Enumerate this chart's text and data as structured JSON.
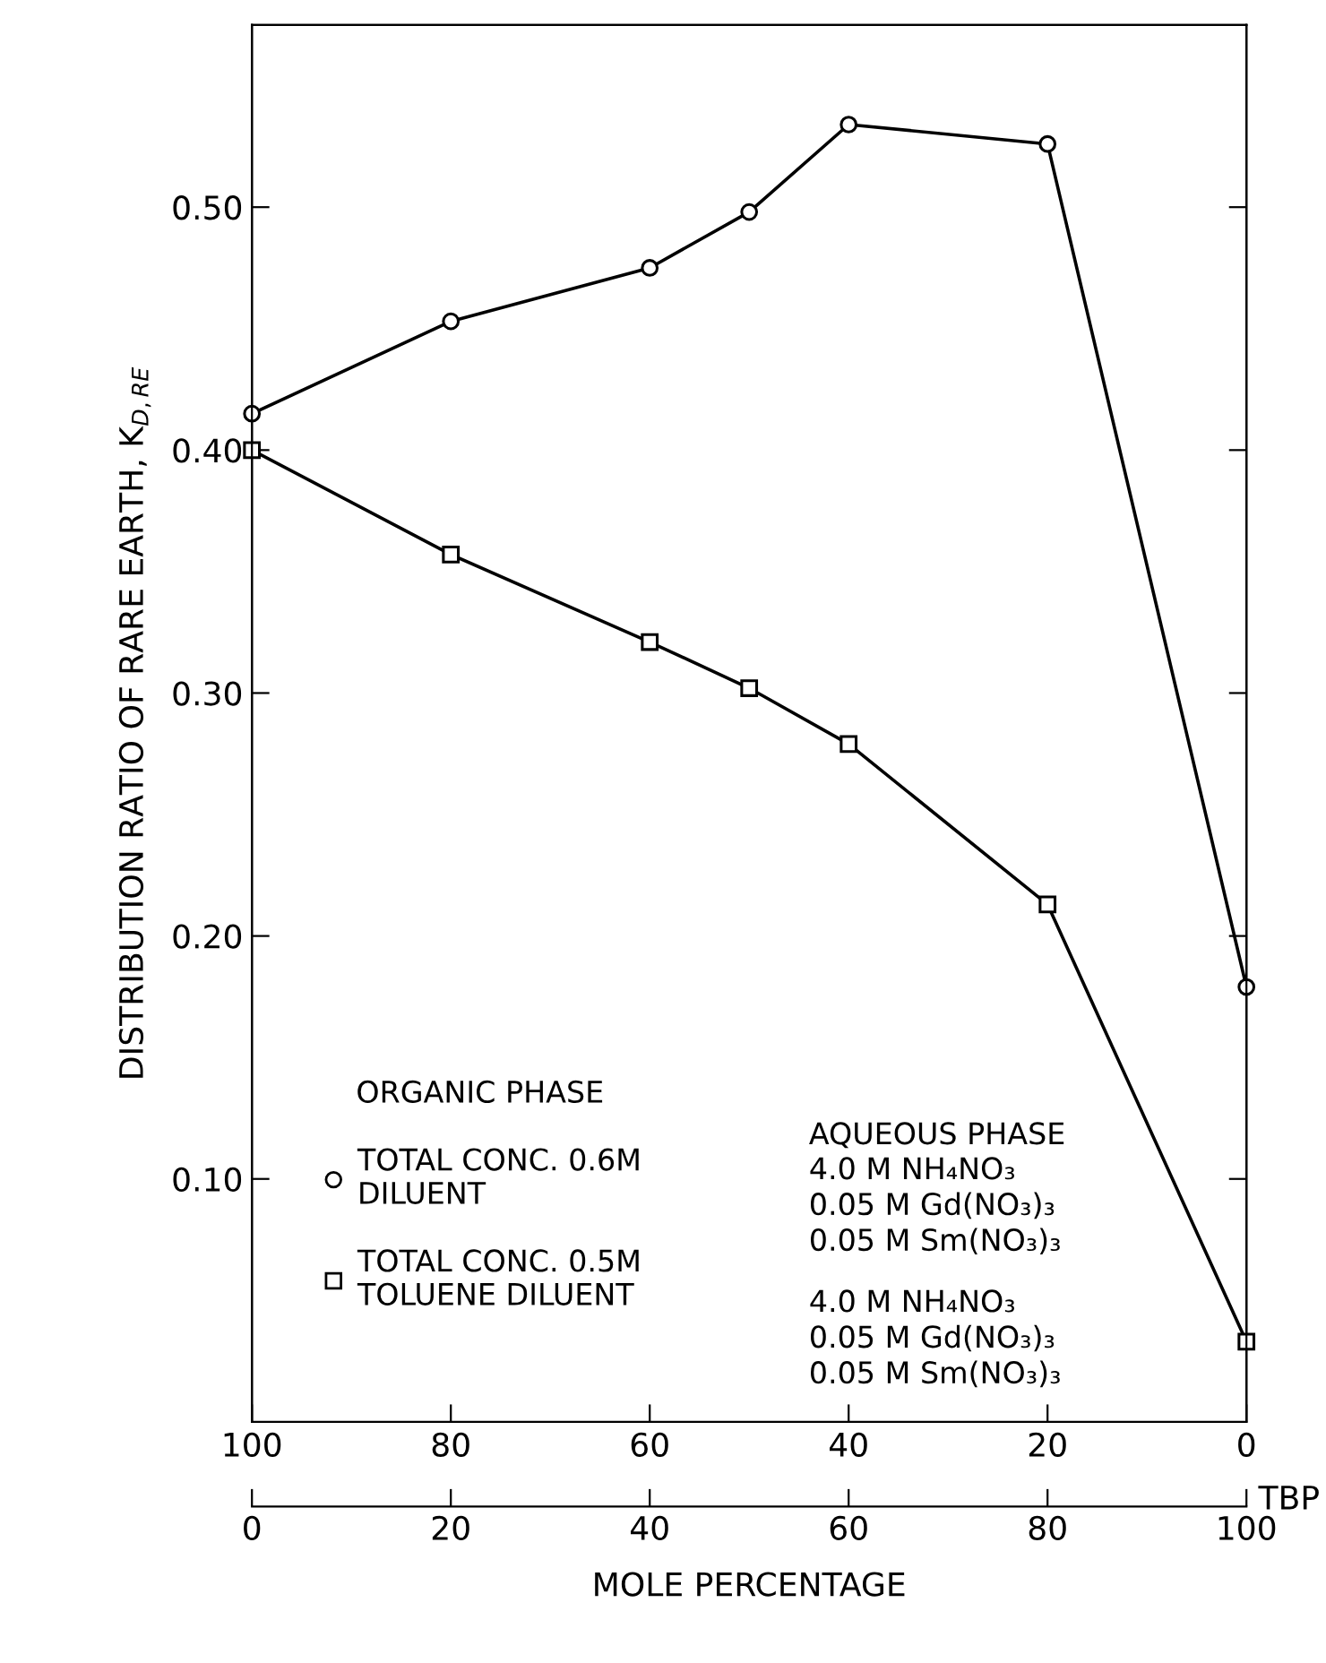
{
  "chart_data": {
    "type": "line",
    "xlabel": "MOLE PERCENTAGE",
    "x2label": "TBP",
    "ylabel": "DISTRIBUTION RATIO OF RARE EARTH, K$_{D,RE}$",
    "legend_title": "ORGANIC PHASE",
    "legend": "bottom left",
    "x": [
      0,
      20,
      40,
      50,
      60,
      80,
      100
    ],
    "series": [
      {
        "name": "TOTAL CONC. 0.6M\nDILUENT",
        "color": "#000000",
        "marker": "circle",
        "values": [
          0.415,
          0.453,
          0.475,
          0.498,
          0.534,
          0.526,
          0.179
        ]
      },
      {
        "name": "TOTAL CONC. 0.5M\nTOLUENE DILUENT",
        "color": "#000000",
        "marker": "square",
        "values": [
          0.4,
          0.357,
          0.321,
          0.302,
          0.279,
          0.213,
          0.033
        ]
      }
    ],
    "xlim": [
      0,
      100
    ],
    "xticks": [
      0,
      20,
      40,
      60,
      80,
      100
    ],
    "x2lim": [
      100,
      0
    ],
    "x2ticks": [
      100,
      80,
      60,
      40,
      20,
      0
    ],
    "ylim": [
      0,
      0.575
    ],
    "yticks": [
      {
        "value": 0.1,
        "label": "0.10"
      },
      {
        "value": 0.2,
        "label": "0.20"
      },
      {
        "value": 0.3,
        "label": "0.30"
      },
      {
        "value": 0.4,
        "label": "0.40"
      },
      {
        "value": 0.5,
        "label": "0.50"
      }
    ],
    "grid": false,
    "line_style": "solid",
    "annotations": [
      "AQUEOUS PHASE",
      "4.0 M NH₄NO₃\n0.05 M Gd(NO₃)₃\n0.05 M Sm(NO₃)₃",
      "4.0 M NH₄NO₃\n0.05 M Gd(NO₃)₃\n0.05 M Sm(NO₃)₃"
    ]
  }
}
